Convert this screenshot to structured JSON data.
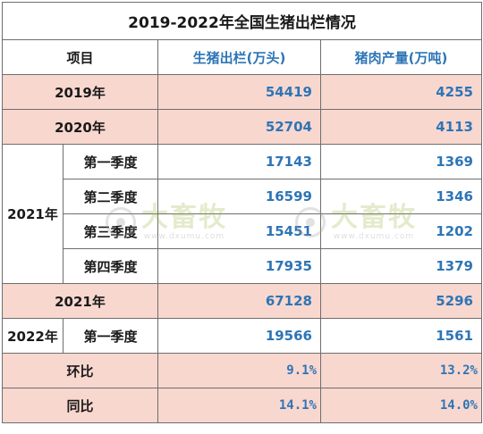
{
  "title": "2019-2022年全国生猪出栏情况",
  "headers": {
    "item": "项目",
    "col1": "生猪出栏(万头)",
    "col2": "猪肉产量(万吨)"
  },
  "rows": {
    "y2019": {
      "label": "2019年",
      "v1": "54419",
      "v2": "4255"
    },
    "y2020": {
      "label": "2020年",
      "v1": "52704",
      "v2": "4113"
    },
    "y2021q": {
      "year": "2021年",
      "q1": {
        "label": "第一季度",
        "v1": "17143",
        "v2": "1369"
      },
      "q2": {
        "label": "第二季度",
        "v1": "16599",
        "v2": "1346"
      },
      "q3": {
        "label": "第三季度",
        "v1": "15451",
        "v2": "1202"
      },
      "q4": {
        "label": "第四季度",
        "v1": "17935",
        "v2": "1379"
      }
    },
    "y2021": {
      "label": "2021年",
      "v1": "67128",
      "v2": "5296"
    },
    "y2022q1": {
      "year": "2022年",
      "label": "第一季度",
      "v1": "19566",
      "v2": "1561"
    },
    "mom": {
      "label": "环比",
      "v1": "9.1%",
      "v2": "13.2%"
    },
    "yoy": {
      "label": "同比",
      "v1": "14.1%",
      "v2": "14.0%"
    }
  },
  "watermark": {
    "text": "大畜牧",
    "url": "www.dxumu.com"
  },
  "colors": {
    "accent_blue": "#2e75b6",
    "highlight_pink": "#f8d7cf"
  }
}
